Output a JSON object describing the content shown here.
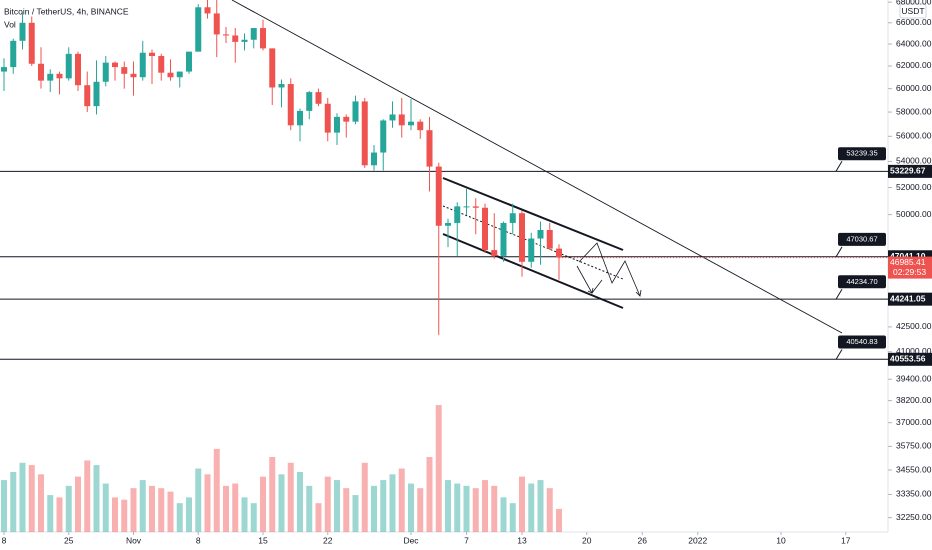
{
  "chart_data": {
    "type": "candlestick",
    "title": "Bitcoin / TetherUS, 4h, BINANCE",
    "volume_label": "Vol",
    "currency": "USDT",
    "log_scale": true,
    "grid": false,
    "up_color": "#26a69a",
    "down_color": "#ef5350",
    "ylim": [
      31585,
      68213
    ],
    "yticks": [
      {
        "value": 68000,
        "label": "68000.00"
      },
      {
        "value": 66000,
        "label": "66000.00"
      },
      {
        "value": 64000,
        "label": "64000.00"
      },
      {
        "value": 62000,
        "label": "62000.00"
      },
      {
        "value": 60000,
        "label": "60000.00"
      },
      {
        "value": 58000,
        "label": "58000.00"
      },
      {
        "value": 56000,
        "label": "56000.00"
      },
      {
        "value": 54000,
        "label": "54000.00"
      },
      {
        "value": 52000,
        "label": "52000.00"
      },
      {
        "value": 50000,
        "label": "50000.00"
      },
      {
        "value": 42500,
        "label": "42500.00"
      },
      {
        "value": 41000,
        "label": "41000.00"
      },
      {
        "value": 39400,
        "label": "39400.00"
      },
      {
        "value": 38200,
        "label": "38200.00"
      },
      {
        "value": 37000,
        "label": "37000.00"
      },
      {
        "value": 35750,
        "label": "35750.00"
      },
      {
        "value": 34550,
        "label": "34550.00"
      },
      {
        "value": 33350,
        "label": "33350.00"
      },
      {
        "value": 32250,
        "label": "32250.00"
      }
    ],
    "xticks": [
      {
        "value": 0,
        "label": "8"
      },
      {
        "value": 7,
        "label": "25"
      },
      {
        "value": 14,
        "label": "Nov"
      },
      {
        "value": 21,
        "label": "8"
      },
      {
        "value": 28,
        "label": "15"
      },
      {
        "value": 35,
        "label": "22"
      },
      {
        "value": 44,
        "label": "Dec"
      },
      {
        "value": 50,
        "label": "7"
      },
      {
        "value": 56,
        "label": "13"
      },
      {
        "value": 63,
        "label": "20"
      },
      {
        "value": 69,
        "label": "26"
      },
      {
        "value": 75,
        "label": "2022"
      },
      {
        "value": 84,
        "label": "10"
      },
      {
        "value": 91,
        "label": "17"
      }
    ],
    "open": [
      61500,
      61900,
      64300,
      66000,
      62200,
      60700,
      61300,
      60900,
      63100,
      60300,
      58500,
      60600,
      62300,
      61900,
      61300,
      61000,
      63200,
      62900,
      61400,
      61000,
      61500,
      63300,
      67500,
      66900,
      64900,
      64800,
      64200,
      64400,
      65500,
      63600,
      60100,
      60400,
      56900,
      58100,
      59700,
      58700,
      56300,
      57600,
      57200,
      58900,
      53700,
      54700,
      57300,
      57800,
      56900,
      57200,
      56500,
      53600,
      49200,
      49400,
      50600,
      50600,
      50500,
      47500,
      47100,
      49400,
      50100,
      46700,
      48300,
      48900,
      47600
    ],
    "high": [
      62700,
      64500,
      67000,
      66600,
      63700,
      61700,
      61500,
      63700,
      63300,
      61500,
      62500,
      62900,
      62400,
      62400,
      62400,
      64300,
      63500,
      63100,
      62600,
      61500,
      63300,
      67800,
      68500,
      69000,
      65600,
      65500,
      65000,
      65500,
      66300,
      63600,
      60800,
      60900,
      58300,
      59800,
      60000,
      59200,
      57900,
      57800,
      59400,
      59200,
      55300,
      57400,
      58900,
      59200,
      59100,
      57400,
      57600,
      53900,
      49700,
      50900,
      51900,
      51200,
      50800,
      50100,
      49500,
      50800,
      50300,
      48700,
      49500,
      49400,
      47900
    ],
    "low": [
      59800,
      61300,
      63500,
      62000,
      60000,
      59700,
      59500,
      60700,
      59800,
      58000,
      57800,
      60200,
      60700,
      60000,
      59400,
      60700,
      60400,
      60700,
      60700,
      60100,
      61300,
      63300,
      66400,
      62800,
      64100,
      62300,
      63400,
      63600,
      63400,
      58600,
      58400,
      56500,
      55600,
      57400,
      58500,
      55600,
      55300,
      55900,
      57000,
      53500,
      53300,
      53300,
      56700,
      55900,
      56500,
      55800,
      51700,
      42000,
      47700,
      47100,
      50000,
      48600,
      47300,
      46900,
      46700,
      48600,
      45700,
      46300,
      46500,
      47500,
      45500
    ],
    "close": [
      61900,
      64300,
      66000,
      62200,
      60700,
      61300,
      60900,
      63100,
      60300,
      58500,
      60600,
      62300,
      61900,
      61300,
      61000,
      63200,
      62900,
      61400,
      61000,
      61500,
      63300,
      67500,
      66900,
      64900,
      64800,
      64200,
      64400,
      65500,
      63600,
      60100,
      60400,
      56900,
      58100,
      59700,
      58700,
      56300,
      57600,
      57200,
      58900,
      53700,
      54700,
      57300,
      57800,
      56900,
      57200,
      56500,
      53600,
      49200,
      49400,
      50600,
      50600,
      50500,
      47500,
      47100,
      49400,
      50100,
      46700,
      48300,
      48900,
      47600,
      46985.41
    ],
    "volume": [
      45000,
      52000,
      60000,
      58000,
      50000,
      32000,
      30000,
      40000,
      48000,
      62000,
      58000,
      42000,
      30000,
      28000,
      38000,
      45000,
      40000,
      38000,
      35000,
      25000,
      30000,
      55000,
      50000,
      72000,
      40000,
      42000,
      30000,
      25000,
      48000,
      65000,
      50000,
      60000,
      52000,
      40000,
      25000,
      48000,
      45000,
      38000,
      32000,
      60000,
      40000,
      45000,
      50000,
      55000,
      42000,
      38000,
      65000,
      110000,
      45000,
      42000,
      40000,
      38000,
      45000,
      40000,
      30000,
      25000,
      48000,
      42000,
      45000,
      38000,
      20000
    ],
    "vollim": [
      0,
      130000
    ],
    "levels": [
      {
        "value": 53229.67,
        "label": "53229.67"
      },
      {
        "value": 47041.1,
        "label": "47041.10"
      },
      {
        "value": 44241.05,
        "label": "44241.05"
      },
      {
        "value": 40553.56,
        "label": "40553.56"
      }
    ],
    "callouts": [
      {
        "value": 53239.35,
        "label": "53239.35"
      },
      {
        "value": 47030.67,
        "label": "47030.67"
      },
      {
        "value": 44234.7,
        "label": "44234.70"
      },
      {
        "value": 40540.83,
        "label": "40540.83"
      }
    ],
    "last_price": 46985.41,
    "countdown": "02:29:53"
  }
}
